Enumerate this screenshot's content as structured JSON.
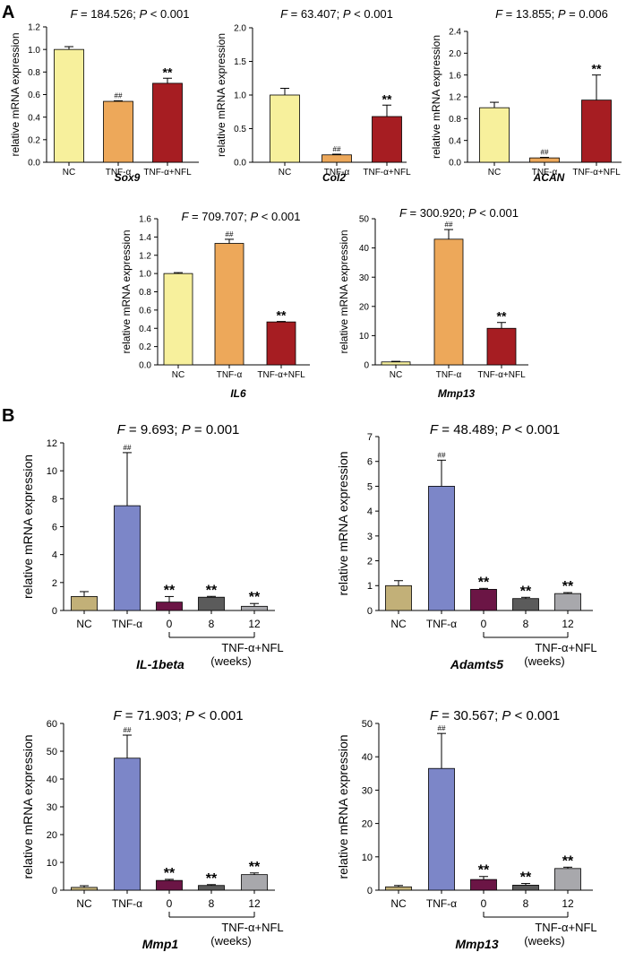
{
  "panel_labels": {
    "A": "A",
    "B": "B"
  },
  "colors": {
    "nc_a": "#f7f09c",
    "tnf_a": "#eda85a",
    "nfl_a": "#a61d22",
    "nc_b": "#c2b078",
    "tnf_b": "#7c86c8",
    "w0_b": "#6b1545",
    "w8_b": "#5b5b5b",
    "w12_b": "#a8a8ac"
  },
  "chart_data": [
    {
      "id": "sox9",
      "type": "bar",
      "stats": {
        "F": "F",
        "f_text": " = 184.526; ",
        "P": "P",
        "p_text": " < 0.001"
      },
      "ylabel": "relative mRNA expression",
      "gene": "Sox9",
      "ylim": [
        0,
        1.2
      ],
      "yticks": [
        0,
        0.2,
        0.4,
        0.6,
        0.8,
        1.0,
        1.2
      ],
      "ytick_labels": [
        "0.0",
        "0.2",
        "0.4",
        "0.6",
        "0.8",
        "1.0",
        "1.2"
      ],
      "categories": [
        "NC",
        "TNF-α",
        "TNF-α+NFL"
      ],
      "values": [
        1.0,
        0.54,
        0.7
      ],
      "errors": [
        0.025,
        0.005,
        0.045
      ],
      "marks": [
        "",
        "##",
        "**"
      ],
      "colors": [
        "nc_a",
        "tnf_a",
        "nfl_a"
      ]
    },
    {
      "id": "col2",
      "type": "bar",
      "stats": {
        "F": "F",
        "f_text": " = 63.407; ",
        "P": "P",
        "p_text": " < 0.001"
      },
      "ylabel": "relative mRNA expression",
      "gene": "Col2",
      "ylim": [
        0,
        2.0
      ],
      "yticks": [
        0,
        0.5,
        1.0,
        1.5,
        2.0
      ],
      "ytick_labels": [
        "0.0",
        "0.5",
        "1.0",
        "1.5",
        "2.0"
      ],
      "categories": [
        "NC",
        "TNF-α",
        "TNF-α+NFL"
      ],
      "values": [
        1.0,
        0.11,
        0.68
      ],
      "errors": [
        0.1,
        0.01,
        0.17
      ],
      "marks": [
        "",
        "##",
        "**"
      ],
      "colors": [
        "nc_a",
        "tnf_a",
        "nfl_a"
      ]
    },
    {
      "id": "acan",
      "type": "bar",
      "stats": {
        "F": "F",
        "f_text": " = 13.855; ",
        "P": "P",
        "p_text": " = 0.006"
      },
      "ylabel": "relative mRNA expression",
      "gene": "ACAN",
      "ylim": [
        0,
        2.4
      ],
      "yticks": [
        0,
        0.4,
        0.8,
        1.2,
        1.6,
        2.0,
        2.4
      ],
      "ytick_labels": [
        "0.0",
        "0.4",
        "0.8",
        "1.2",
        "1.6",
        "2.0",
        "2.4"
      ],
      "categories": [
        "NC",
        "TNF-α",
        "TNF-α+NFL"
      ],
      "values": [
        1.0,
        0.08,
        1.14
      ],
      "errors": [
        0.1,
        0.01,
        0.46
      ],
      "marks": [
        "",
        "##",
        "**"
      ],
      "colors": [
        "nc_a",
        "tnf_a",
        "nfl_a"
      ]
    },
    {
      "id": "il6",
      "type": "bar",
      "stats": {
        "F": "F",
        "f_text": " = 709.707; ",
        "P": "P",
        "p_text": " < 0.001"
      },
      "ylabel": "relative mRNA expression",
      "gene": "IL6",
      "ylim": [
        0,
        1.6
      ],
      "yticks": [
        0,
        0.2,
        0.4,
        0.6,
        0.8,
        1.0,
        1.2,
        1.4,
        1.6
      ],
      "ytick_labels": [
        "0.0",
        "0.2",
        "0.4",
        "0.6",
        "0.8",
        "1.0",
        "1.2",
        "1.4",
        "1.6"
      ],
      "categories": [
        "NC",
        "TNF-α",
        "TNF-α+NFL"
      ],
      "values": [
        1.0,
        1.33,
        0.47
      ],
      "errors": [
        0.01,
        0.045,
        0.005
      ],
      "marks": [
        "",
        "##",
        "**"
      ],
      "colors": [
        "nc_a",
        "tnf_a",
        "nfl_a"
      ]
    },
    {
      "id": "mmp13a",
      "type": "bar",
      "stats": {
        "F": "F",
        "f_text": " = 300.920; ",
        "P": "P",
        "p_text": " < 0.001"
      },
      "ylabel": "relative mRNA expression",
      "gene": "Mmp13",
      "ylim": [
        0,
        50
      ],
      "yticks": [
        0,
        10,
        20,
        30,
        40,
        50
      ],
      "ytick_labels": [
        "0",
        "10",
        "20",
        "30",
        "40",
        "50"
      ],
      "categories": [
        "NC",
        "TNF-α",
        "TNF-α+NFL"
      ],
      "values": [
        1.0,
        43.0,
        12.5
      ],
      "errors": [
        0.2,
        3.3,
        2.0
      ],
      "marks": [
        "",
        "##",
        "**"
      ],
      "colors": [
        "nc_a",
        "tnf_a",
        "nfl_a"
      ]
    },
    {
      "id": "il1b",
      "type": "bar",
      "stats": {
        "F": "F",
        "f_text": " = 9.693; ",
        "P": "P",
        "p_text": " = 0.001"
      },
      "ylabel": "relative mRNA expression",
      "gene": "IL-1beta",
      "ylim": [
        0,
        12
      ],
      "yticks": [
        0,
        2,
        4,
        6,
        8,
        10,
        12
      ],
      "ytick_labels": [
        "0",
        "2",
        "4",
        "6",
        "8",
        "10",
        "12"
      ],
      "categories": [
        "NC",
        "TNF-α",
        "0",
        "8",
        "12"
      ],
      "values": [
        1.0,
        7.5,
        0.6,
        0.95,
        0.3
      ],
      "errors": [
        0.35,
        3.8,
        0.4,
        0.06,
        0.2
      ],
      "marks": [
        "",
        "##",
        "**",
        "**",
        "**"
      ],
      "colors": [
        "nc_b",
        "tnf_b",
        "w0_b",
        "w8_b",
        "w12_b"
      ],
      "group_label": "TNF-α+NFL",
      "group_sublabel": "(weeks)"
    },
    {
      "id": "adamts5",
      "type": "bar",
      "stats": {
        "F": "F",
        "f_text": " = 48.489; ",
        "P": "P",
        "p_text": " < 0.001"
      },
      "ylabel": "relative mRNA expression",
      "gene": "Adamts5",
      "ylim": [
        0,
        7
      ],
      "yticks": [
        0,
        1,
        2,
        3,
        4,
        5,
        6,
        7
      ],
      "ytick_labels": [
        "0",
        "1",
        "2",
        "3",
        "4",
        "5",
        "6",
        "7"
      ],
      "categories": [
        "NC",
        "TNF-α",
        "0",
        "8",
        "12"
      ],
      "values": [
        1.0,
        5.0,
        0.85,
        0.48,
        0.68
      ],
      "errors": [
        0.2,
        1.05,
        0.04,
        0.05,
        0.04
      ],
      "marks": [
        "",
        "##",
        "**",
        "**",
        "**"
      ],
      "colors": [
        "nc_b",
        "tnf_b",
        "w0_b",
        "w8_b",
        "w12_b"
      ],
      "group_label": "TNF-α+NFL",
      "group_sublabel": "(weeks)"
    },
    {
      "id": "mmp1",
      "type": "bar",
      "stats": {
        "F": "F",
        "f_text": " = 71.903; ",
        "P": "P",
        "p_text": " < 0.001"
      },
      "ylabel": "relative mRNA expression",
      "gene": "Mmp1",
      "ylim": [
        0,
        60
      ],
      "yticks": [
        0,
        10,
        20,
        30,
        40,
        50,
        60
      ],
      "ytick_labels": [
        "0",
        "10",
        "20",
        "30",
        "40",
        "50",
        "60"
      ],
      "categories": [
        "NC",
        "TNF-α",
        "0",
        "8",
        "12"
      ],
      "values": [
        1.0,
        47.5,
        3.5,
        1.7,
        5.6
      ],
      "errors": [
        0.6,
        8.3,
        0.4,
        0.3,
        0.6
      ],
      "marks": [
        "",
        "##",
        "**",
        "**",
        "**"
      ],
      "colors": [
        "nc_b",
        "tnf_b",
        "w0_b",
        "w8_b",
        "w12_b"
      ],
      "group_label": "TNF-α+NFL",
      "group_sublabel": "(weeks)"
    },
    {
      "id": "mmp13b",
      "type": "bar",
      "stats": {
        "F": "F",
        "f_text": " = 30.567; ",
        "P": "P",
        "p_text": " < 0.001"
      },
      "ylabel": "relative mRNA expression",
      "gene": "Mmp13",
      "ylim": [
        0,
        50
      ],
      "yticks": [
        0,
        10,
        20,
        30,
        40,
        50
      ],
      "ytick_labels": [
        "0",
        "10",
        "20",
        "30",
        "40",
        "50"
      ],
      "categories": [
        "NC",
        "TNF-α",
        "0",
        "8",
        "12"
      ],
      "values": [
        1.0,
        36.5,
        3.2,
        1.5,
        6.5
      ],
      "errors": [
        0.4,
        10.5,
        0.9,
        0.5,
        0.4
      ],
      "marks": [
        "",
        "##",
        "**",
        "**",
        "**"
      ],
      "colors": [
        "nc_b",
        "tnf_b",
        "w0_b",
        "w8_b",
        "w12_b"
      ],
      "group_label": "TNF-α+NFL",
      "group_sublabel": "(weeks)"
    }
  ]
}
